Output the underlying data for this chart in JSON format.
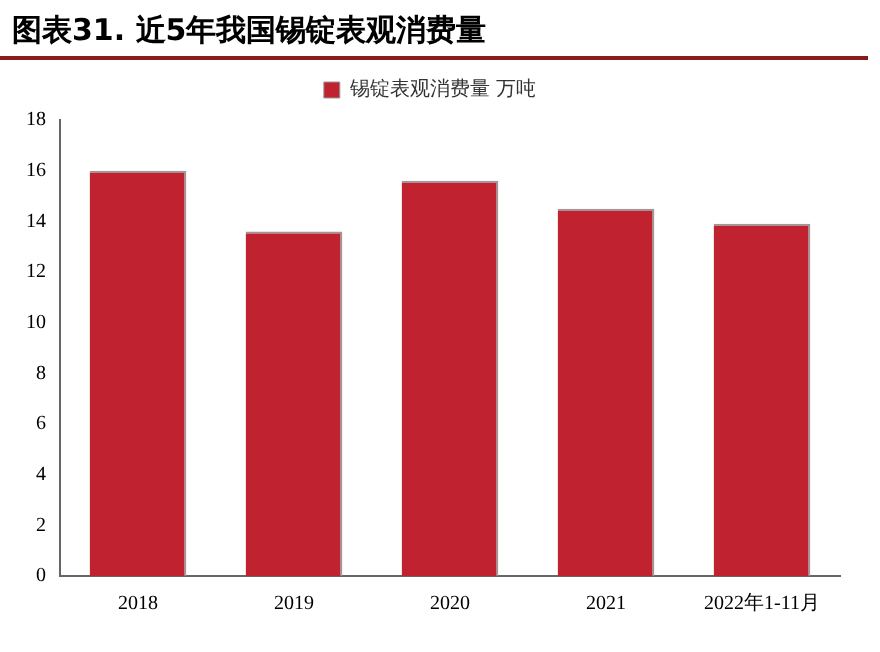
{
  "chart_data": {
    "type": "bar",
    "title": "图表31. 近5年我国锡锭表观消费量",
    "categories": [
      "2018",
      "2019",
      "2020",
      "2021",
      "2022年1-11月"
    ],
    "series": [
      {
        "name": "锡锭表观消费量 万吨",
        "color": "#c0232f",
        "values": [
          16.0,
          13.6,
          15.6,
          14.5,
          13.9
        ]
      }
    ],
    "ylim": [
      0,
      18
    ],
    "yticks": [
      0,
      2,
      4,
      6,
      8,
      10,
      12,
      14,
      16,
      18
    ],
    "grid": false,
    "legend": "top"
  }
}
